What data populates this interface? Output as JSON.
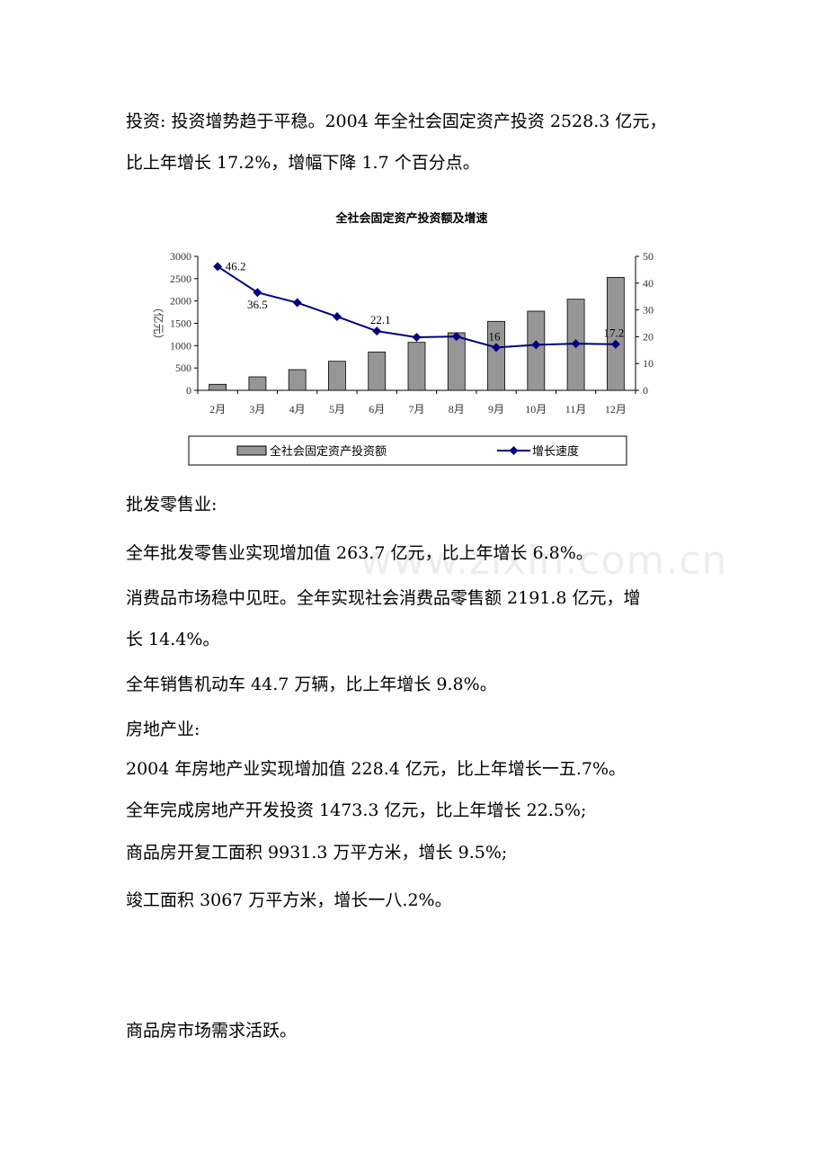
{
  "paragraphs_top": [
    "投资: 投资增势趋于平稳。2004 年全社会固定资产投资 2528.3 亿元，",
    "比上年增长 17.2%，增幅下降 1.7 个百分点。"
  ],
  "paragraphs_bottom": [
    "批发零售业:",
    "全年批发零售业实现增加值 263.7 亿元，比上年增长 6.8%。",
    "消费品市场稳中见旺。全年实现社会消费品零售额 2191.8 亿元，增",
    "长 14.4%。",
    "全年销售机动车 44.7 万辆，比上年增长 9.8%。",
    "房地产业:",
    "2004 年房地产业实现增加值 228.4 亿元，比上年增长一五.7%。",
    "全年完成房地产开发投资 1473.3 亿元，比上年增长 22.5%;",
    "商品房开复工面积 9931.3 万平方米，增长 9.5%;",
    "竣工面积 3067 万平方米，增长一八.2%。",
    "商品房市场需求活跃。"
  ],
  "watermark": "www.zixin.com.cn",
  "chart_data": {
    "type": "bar+line",
    "title": "全社会固定资产投资额及增速",
    "categories": [
      "2月",
      "3月",
      "4月",
      "5月",
      "6月",
      "7月",
      "8月",
      "9月",
      "10月",
      "11月",
      "12月"
    ],
    "series": [
      {
        "name": "全社会固定资产投资额",
        "type": "bar",
        "axis": "left",
        "color": "#969696",
        "values": [
          135,
          302,
          463,
          651,
          859,
          1074,
          1289,
          1544,
          1772,
          2040,
          2528
        ]
      },
      {
        "name": "增长速度",
        "type": "line",
        "axis": "right",
        "color": "#000080",
        "marker": "diamond",
        "values": [
          46.2,
          36.5,
          32.7,
          27.5,
          22.1,
          19.8,
          20.1,
          16,
          17.0,
          17.4,
          17.2
        ]
      }
    ],
    "data_labels": [
      {
        "index": 0,
        "text": "46.2"
      },
      {
        "index": 1,
        "text": "36.5"
      },
      {
        "index": 4,
        "text": "22.1"
      },
      {
        "index": 7,
        "text": "16"
      },
      {
        "index": 10,
        "text": "17.2"
      }
    ],
    "ylabel_left": "（亿元）",
    "ylabel_right": "（%）",
    "ylim_left": [
      0,
      3000
    ],
    "yticks_left": [
      "0",
      "500",
      "1000",
      "1500",
      "2000",
      "2500",
      "3000"
    ],
    "ylim_right": [
      0,
      50
    ],
    "yticks_right": [
      "0",
      "10",
      "20",
      "30",
      "40",
      "50"
    ],
    "grid": false,
    "legend": "bottom"
  }
}
